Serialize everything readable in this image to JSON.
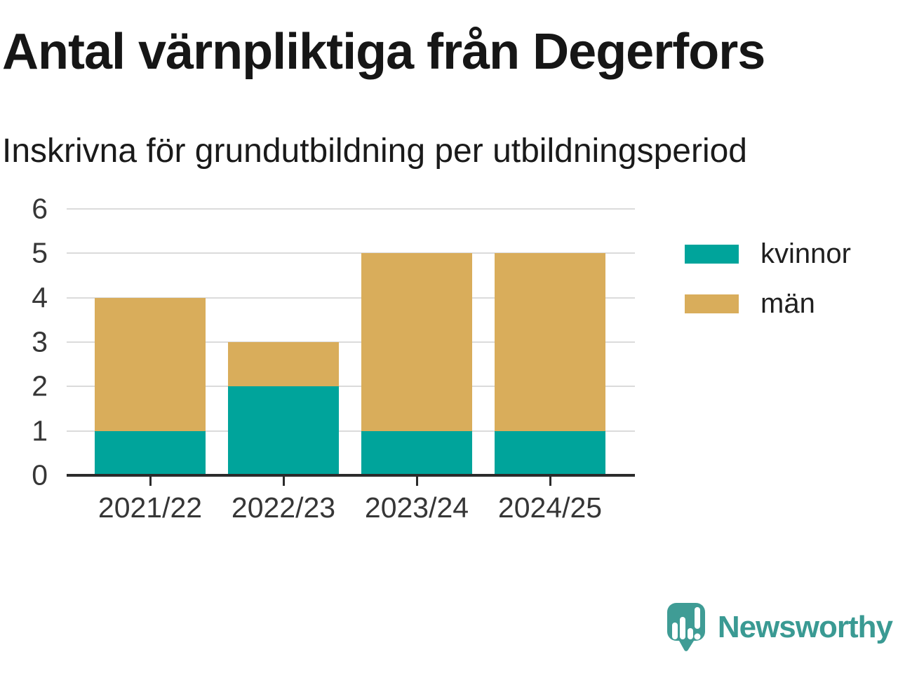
{
  "header": {
    "title": "Antal värnpliktiga från Degerfors",
    "subtitle": "Inskrivna för grundutbildning per utbildningsperiod"
  },
  "chart_data": {
    "type": "bar",
    "stacked": true,
    "categories": [
      "2021/22",
      "2022/23",
      "2023/24",
      "2024/25"
    ],
    "series": [
      {
        "name": "kvinnor",
        "color": "#00a49b",
        "values": [
          1,
          2,
          1,
          1
        ]
      },
      {
        "name": "män",
        "color": "#d9ad5b",
        "values": [
          3,
          1,
          4,
          4
        ]
      }
    ],
    "totals": [
      4,
      3,
      5,
      5
    ],
    "title": "Antal värnpliktiga från Degerfors",
    "subtitle": "Inskrivna för grundutbildning per utbildningsperiod",
    "xlabel": "",
    "ylabel": "",
    "ylim": [
      0,
      6
    ],
    "yticks": [
      0,
      1,
      2,
      3,
      4,
      5,
      6
    ],
    "grid": true,
    "legend_position": "right"
  },
  "branding": {
    "logo_text": "Newsworthy",
    "logo_icon": "newsworthy-speech-bubble-bar-chart-icon",
    "brand_color": "#3f9c95"
  },
  "colors": {
    "kvinnor": "#00a49b",
    "man": "#d9ad5b",
    "axis": "#2b2b2b",
    "grid": "#dbdbdb",
    "title_text": "#161616",
    "tick_text": "#363636"
  }
}
